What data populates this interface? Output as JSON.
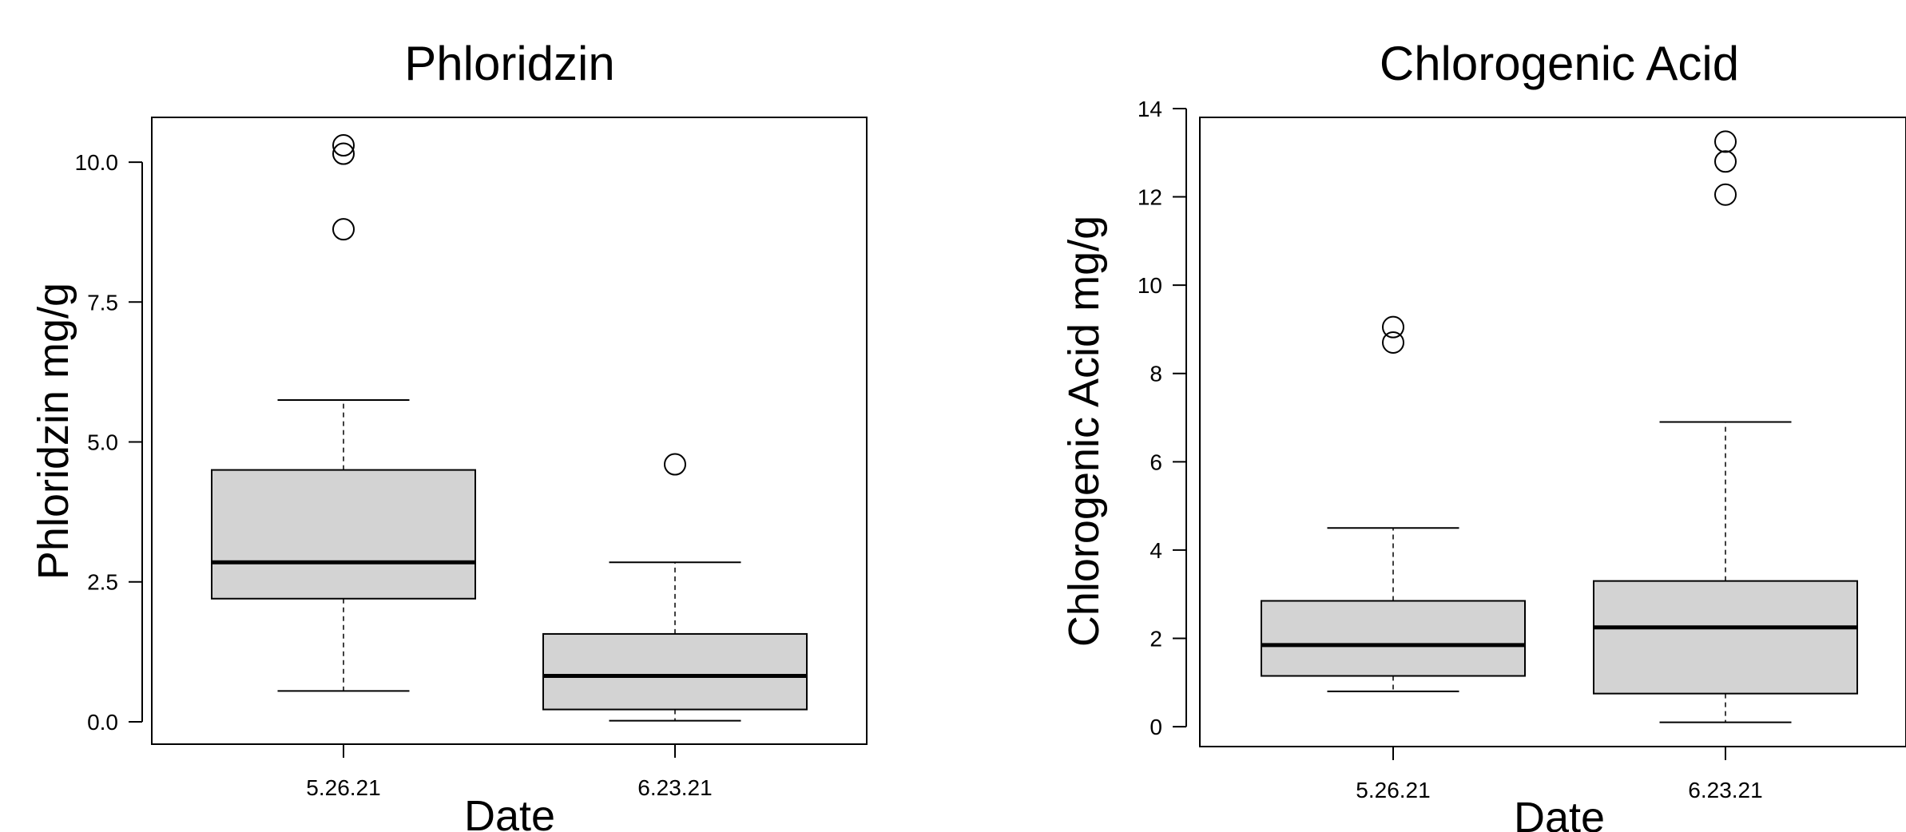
{
  "chart_data": [
    {
      "type": "box",
      "title": "Phloridzin",
      "xlabel": "Date",
      "ylabel": "Phloridzin mg/g",
      "categories": [
        "5.26.21",
        "6.23.21"
      ],
      "y_ticks": [
        "0.0",
        "2.5",
        "5.0",
        "7.5",
        "10.0"
      ],
      "ylim": [
        -0.4,
        10.8
      ],
      "boxes": [
        {
          "category": "5.26.21",
          "whisker_low": 0.55,
          "q1": 2.2,
          "median": 2.85,
          "q3": 4.5,
          "whisker_high": 5.75,
          "outliers": [
            8.8,
            10.15,
            10.3
          ]
        },
        {
          "category": "6.23.21",
          "whisker_low": 0.02,
          "q1": 0.22,
          "median": 0.82,
          "q3": 1.57,
          "whisker_high": 2.85,
          "outliers": [
            4.6
          ]
        }
      ],
      "box_fill": "#d3d3d3"
    },
    {
      "type": "box",
      "title": "Chlorogenic Acid",
      "xlabel": "Date",
      "ylabel": "Chlorogenic Acid mg/g",
      "categories": [
        "5.26.21",
        "6.23.21"
      ],
      "y_ticks": [
        "0",
        "2",
        "4",
        "6",
        "8",
        "10",
        "12",
        "14"
      ],
      "ylim": [
        -0.45,
        13.8
      ],
      "boxes": [
        {
          "category": "5.26.21",
          "whisker_low": 0.8,
          "q1": 1.15,
          "median": 1.85,
          "q3": 2.85,
          "whisker_high": 4.5,
          "outliers": [
            8.7,
            9.05
          ]
        },
        {
          "category": "6.23.21",
          "whisker_low": 0.1,
          "q1": 0.75,
          "median": 2.25,
          "q3": 3.3,
          "whisker_high": 6.9,
          "outliers": [
            12.05,
            12.8,
            13.25
          ]
        }
      ],
      "box_fill": "#d3d3d3"
    }
  ]
}
